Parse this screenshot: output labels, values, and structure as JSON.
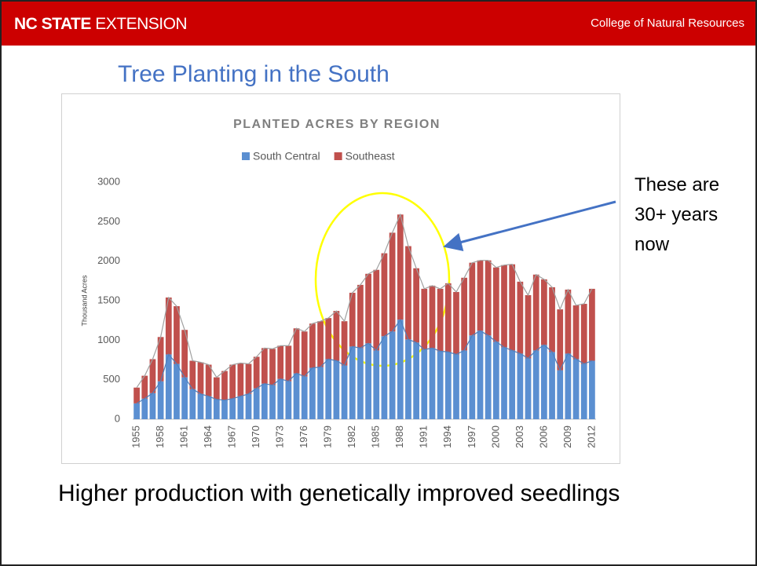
{
  "header": {
    "brand_bold": "NC STATE",
    "brand_light": "EXTENSION",
    "college": "College of Natural Resources"
  },
  "slide_title": "Tree Planting in the South",
  "caption": "Higher production with genetically improved seedlings",
  "chart_data": {
    "type": "stacked_bar",
    "title": "PLANTED ACRES BY REGION",
    "y_label": "Thousand Acres",
    "annotation": "These are 30+ years now",
    "categories": [
      "1955",
      null,
      null,
      "1958",
      null,
      null,
      "1961",
      null,
      null,
      "1964",
      null,
      null,
      "1967",
      null,
      null,
      "1970",
      null,
      null,
      "1973",
      null,
      null,
      "1976",
      null,
      null,
      "1979",
      null,
      null,
      "1982",
      null,
      null,
      "1985",
      null,
      null,
      "1988",
      null,
      null,
      "1991",
      null,
      null,
      "1994",
      null,
      null,
      "1997",
      null,
      null,
      "2000",
      null,
      null,
      "2003",
      null,
      null,
      "2006",
      null,
      null,
      "2009",
      null,
      null,
      "2012"
    ],
    "series": [
      {
        "name": "South Central",
        "color": "#5b8fd1",
        "line_color": "#4f81bd",
        "values": [
          200,
          260,
          330,
          480,
          820,
          700,
          530,
          380,
          320,
          290,
          250,
          240,
          260,
          290,
          320,
          390,
          450,
          430,
          510,
          480,
          580,
          540,
          650,
          660,
          760,
          740,
          680,
          920,
          900,
          960,
          870,
          1050,
          1110,
          1260,
          1010,
          970,
          880,
          900,
          860,
          850,
          820,
          870,
          1060,
          1120,
          1060,
          980,
          910,
          870,
          830,
          770,
          870,
          940,
          850,
          620,
          830,
          760,
          700,
          740
        ]
      },
      {
        "name": "Southeast",
        "color": "#c0504d",
        "line_color": "#a0a0a0",
        "values": [
          200,
          290,
          430,
          560,
          720,
          730,
          600,
          360,
          400,
          400,
          280,
          370,
          430,
          420,
          380,
          400,
          450,
          460,
          420,
          450,
          570,
          570,
          560,
          580,
          520,
          630,
          560,
          680,
          800,
          880,
          1020,
          1050,
          1250,
          1330,
          1180,
          940,
          770,
          790,
          790,
          870,
          790,
          920,
          920,
          890,
          950,
          940,
          1040,
          1090,
          910,
          800,
          960,
          830,
          820,
          770,
          810,
          680,
          760,
          910
        ]
      }
    ],
    "ylim": [
      0,
      3000
    ],
    "yticks": [
      0,
      500,
      1000,
      1500,
      2000,
      2500,
      3000
    ],
    "grid": false,
    "legend": "top"
  }
}
